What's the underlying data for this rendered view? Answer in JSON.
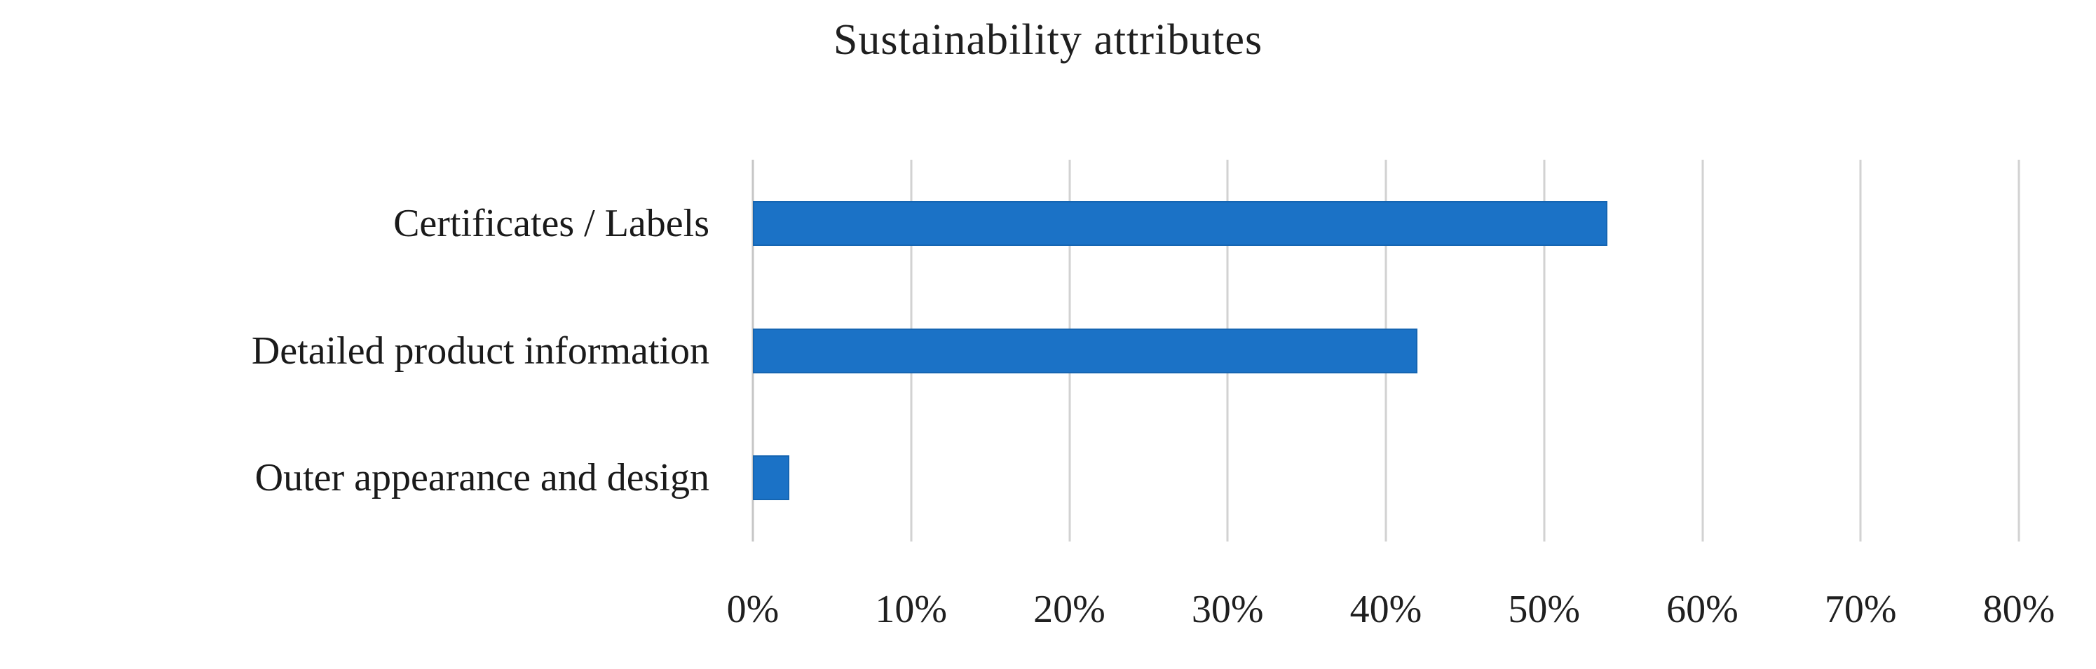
{
  "chart_data": {
    "type": "bar",
    "orientation": "horizontal",
    "title": "Sustainability attributes",
    "categories": [
      "Certificates / Labels",
      "Detailed product information",
      "Outer appearance and design"
    ],
    "values": [
      54,
      42,
      2.3
    ],
    "value_unit": "%",
    "xlabel": "",
    "ylabel": "",
    "xlim": [
      0,
      80
    ],
    "x_tick_values": [
      0,
      10,
      20,
      30,
      40,
      50,
      60,
      70,
      80
    ],
    "x_tick_labels": [
      "0%",
      "10%",
      "20%",
      "30%",
      "40%",
      "50%",
      "60%",
      "70%",
      "80%"
    ],
    "grid": "vertical-gridlines-on",
    "legend_position": "none",
    "colors": {
      "bar_fill": "#1b72c6",
      "bar_border": "#1565b2",
      "gridline": "#d2d2d2",
      "text": "#1f1f1f",
      "background": "#ffffff"
    }
  }
}
